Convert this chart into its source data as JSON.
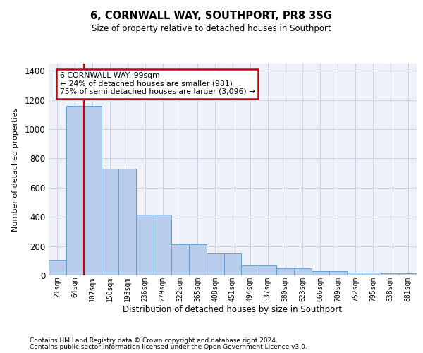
{
  "title1": "6, CORNWALL WAY, SOUTHPORT, PR8 3SG",
  "title2": "Size of property relative to detached houses in Southport",
  "xlabel": "Distribution of detached houses by size in Southport",
  "ylabel": "Number of detached properties",
  "categories": [
    "21sqm",
    "64sqm",
    "107sqm",
    "150sqm",
    "193sqm",
    "236sqm",
    "279sqm",
    "322sqm",
    "365sqm",
    "408sqm",
    "451sqm",
    "494sqm",
    "537sqm",
    "580sqm",
    "623sqm",
    "666sqm",
    "709sqm",
    "752sqm",
    "795sqm",
    "838sqm",
    "881sqm"
  ],
  "bar_values": [
    107,
    1160,
    1160,
    730,
    730,
    415,
    415,
    215,
    215,
    150,
    150,
    70,
    70,
    47,
    47,
    30,
    30,
    18,
    18,
    15,
    15
  ],
  "bar_color": "#b8cceb",
  "bar_edge_color": "#6aa0cc",
  "grid_color": "#c8d4e8",
  "background_color": "#eef2f8",
  "vline_color": "#cc0000",
  "vline_position": 2.0,
  "annotation_text": "6 CORNWALL WAY: 99sqm\n← 24% of detached houses are smaller (981)\n75% of semi-detached houses are larger (3,096) →",
  "annotation_box_edge": "#cc0000",
  "footer1": "Contains HM Land Registry data © Crown copyright and database right 2024.",
  "footer2": "Contains public sector information licensed under the Open Government Licence v3.0.",
  "ylim_max": 1450,
  "yticks": [
    0,
    200,
    400,
    600,
    800,
    1000,
    1200,
    1400
  ]
}
